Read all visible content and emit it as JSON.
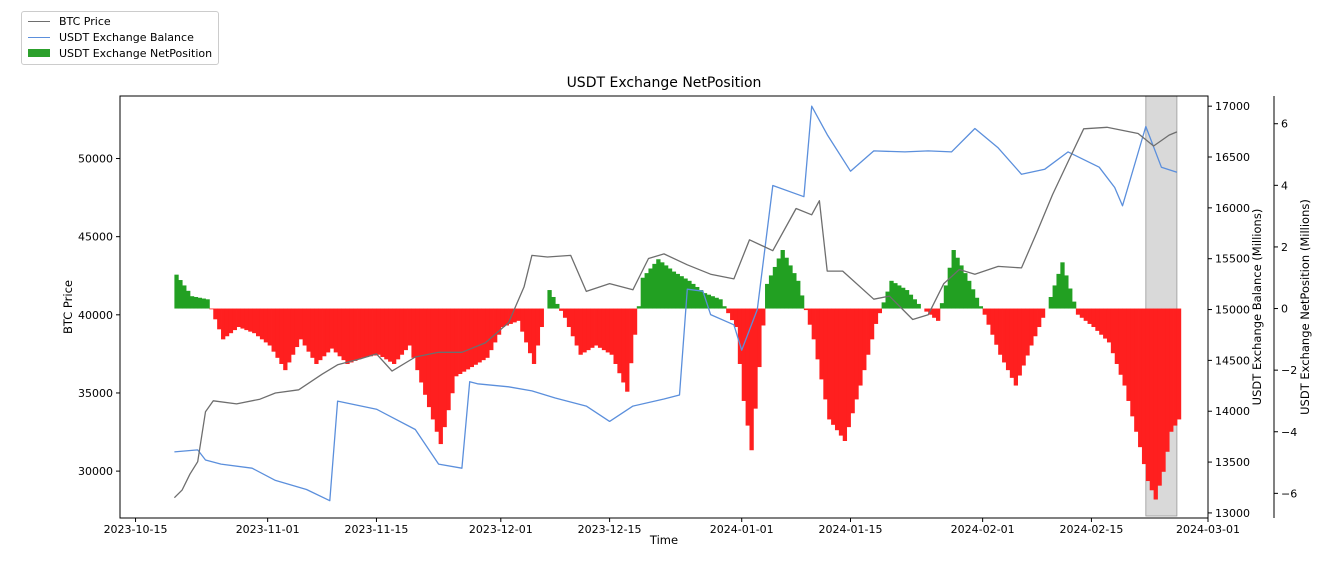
{
  "chart_data": {
    "type": "line",
    "title": "USDT Exchange NetPosition",
    "xlabel": "Time",
    "ylabel_left": "BTC Price",
    "ylabel_right1": "USDT Exchange Balance (Millions)",
    "ylabel_right2": "USDT Exchange NetPosition (Millions)",
    "x_range": [
      "2023-10-13",
      "2024-03-01"
    ],
    "x_ticks": [
      "2023-10-15",
      "2023-11-01",
      "2023-11-15",
      "2023-12-01",
      "2023-12-15",
      "2024-01-01",
      "2024-01-15",
      "2024-02-01",
      "2024-02-15",
      "2024-03-01"
    ],
    "ylim_left": [
      27000,
      54000
    ],
    "yticks_left": [
      30000,
      35000,
      40000,
      45000,
      50000
    ],
    "ylim_right1": [
      12950,
      17100
    ],
    "yticks_right1": [
      13000,
      13500,
      14000,
      14500,
      15000,
      15500,
      16000,
      16500,
      17000
    ],
    "ylim_right2": [
      -6.8,
      6.9
    ],
    "yticks_right2": [
      -6,
      -4,
      -2,
      0,
      2,
      4,
      6
    ],
    "legend": [
      {
        "label": "BTC Price",
        "color": "#6e6e6e",
        "kind": "line"
      },
      {
        "label": "USDT Exchange Balance",
        "color": "#5b8fdc",
        "kind": "line"
      },
      {
        "label": "USDT Exchange NetPosition",
        "color": "#2ca02c",
        "kind": "bar"
      }
    ],
    "highlight_range": [
      "2024-02-22",
      "2024-02-26"
    ],
    "colors": {
      "price": "#6e6e6e",
      "balance": "#5b8fdc",
      "positive": "#22a022",
      "negative": "#ff1f1f",
      "highlight": "#d9d9d9"
    },
    "series": [
      {
        "name": "BTC Price",
        "axis": "left",
        "x": [
          "2023-10-20",
          "2023-10-21",
          "2023-10-22",
          "2023-10-23",
          "2023-10-24",
          "2023-10-25",
          "2023-10-28",
          "2023-10-31",
          "2023-11-02",
          "2023-11-05",
          "2023-11-08",
          "2023-11-10",
          "2023-11-13",
          "2023-11-15",
          "2023-11-17",
          "2023-11-20",
          "2023-11-23",
          "2023-11-26",
          "2023-11-29",
          "2023-12-02",
          "2023-12-04",
          "2023-12-05",
          "2023-12-07",
          "2023-12-10",
          "2023-12-12",
          "2023-12-15",
          "2023-12-18",
          "2023-12-20",
          "2023-12-22",
          "2023-12-25",
          "2023-12-28",
          "2023-12-31",
          "2024-01-02",
          "2024-01-05",
          "2024-01-08",
          "2024-01-10",
          "2024-01-11",
          "2024-01-12",
          "2024-01-14",
          "2024-01-18",
          "2024-01-20",
          "2024-01-23",
          "2024-01-25",
          "2024-01-27",
          "2024-01-29",
          "2024-01-31",
          "2024-02-03",
          "2024-02-06",
          "2024-02-08",
          "2024-02-10",
          "2024-02-12",
          "2024-02-14",
          "2024-02-17",
          "2024-02-19",
          "2024-02-21",
          "2024-02-23",
          "2024-02-25",
          "2024-02-26"
        ],
        "values": [
          28300,
          28800,
          29800,
          30600,
          33800,
          34500,
          34300,
          34600,
          35000,
          35200,
          36200,
          36800,
          37200,
          37500,
          36400,
          37300,
          37600,
          37600,
          38200,
          39500,
          41800,
          43800,
          43700,
          43800,
          41500,
          42000,
          41600,
          43600,
          43900,
          43200,
          42600,
          42300,
          44800,
          44100,
          46800,
          46400,
          47300,
          42800,
          42800,
          41000,
          41200,
          39700,
          40000,
          42000,
          42900,
          42600,
          43100,
          43000,
          45300,
          47700,
          49800,
          51900,
          52000,
          51800,
          51600,
          50800,
          51500,
          51700
        ]
      },
      {
        "name": "USDT Exchange Balance",
        "axis": "right1",
        "x": [
          "2023-10-20",
          "2023-10-23",
          "2023-10-24",
          "2023-10-26",
          "2023-10-30",
          "2023-11-02",
          "2023-11-06",
          "2023-11-09",
          "2023-11-10",
          "2023-11-15",
          "2023-11-20",
          "2023-11-23",
          "2023-11-26",
          "2023-11-27",
          "2023-11-28",
          "2023-12-02",
          "2023-12-05",
          "2023-12-08",
          "2023-12-12",
          "2023-12-15",
          "2023-12-18",
          "2023-12-22",
          "2023-12-24",
          "2023-12-25",
          "2023-12-27",
          "2023-12-28",
          "2023-12-31",
          "2024-01-01",
          "2024-01-02",
          "2024-01-03",
          "2024-01-05",
          "2024-01-09",
          "2024-01-10",
          "2024-01-12",
          "2024-01-15",
          "2024-01-18",
          "2024-01-22",
          "2024-01-25",
          "2024-01-28",
          "2024-01-31",
          "2024-02-03",
          "2024-02-06",
          "2024-02-09",
          "2024-02-12",
          "2024-02-16",
          "2024-02-18",
          "2024-02-19",
          "2024-02-22",
          "2024-02-24",
          "2024-02-26"
        ],
        "values": [
          13600,
          13620,
          13520,
          13480,
          13440,
          13320,
          13230,
          13120,
          14100,
          14020,
          13820,
          13480,
          13440,
          14290,
          14270,
          14240,
          14200,
          14130,
          14050,
          13900,
          14050,
          14120,
          14160,
          15200,
          15180,
          14950,
          14850,
          14600,
          14800,
          15000,
          16220,
          16110,
          17000,
          16720,
          16360,
          16560,
          16550,
          16560,
          16550,
          16780,
          16590,
          16330,
          16380,
          16550,
          16400,
          16200,
          16020,
          16800,
          16400,
          16350
        ]
      },
      {
        "name": "USDT Exchange NetPosition",
        "axis": "right2",
        "kind": "bar",
        "x": [
          "2023-10-20",
          "2023-10-22",
          "2023-10-24",
          "2023-10-26",
          "2023-10-28",
          "2023-10-30",
          "2023-11-01",
          "2023-11-03",
          "2023-11-05",
          "2023-11-07",
          "2023-11-09",
          "2023-11-11",
          "2023-11-13",
          "2023-11-15",
          "2023-11-17",
          "2023-11-19",
          "2023-11-21",
          "2023-11-23",
          "2023-11-25",
          "2023-11-27",
          "2023-11-29",
          "2023-12-01",
          "2023-12-03",
          "2023-12-05",
          "2023-12-07",
          "2023-12-09",
          "2023-12-11",
          "2023-12-13",
          "2023-12-15",
          "2023-12-17",
          "2023-12-19",
          "2023-12-21",
          "2023-12-23",
          "2023-12-25",
          "2023-12-27",
          "2023-12-29",
          "2023-12-31",
          "2024-01-01",
          "2024-01-02",
          "2024-01-04",
          "2024-01-06",
          "2024-01-08",
          "2024-01-10",
          "2024-01-12",
          "2024-01-14",
          "2024-01-16",
          "2024-01-18",
          "2024-01-20",
          "2024-01-22",
          "2024-01-24",
          "2024-01-26",
          "2024-01-28",
          "2024-01-30",
          "2024-02-01",
          "2024-02-03",
          "2024-02-05",
          "2024-02-07",
          "2024-02-09",
          "2024-02-11",
          "2024-02-13",
          "2024-02-15",
          "2024-02-17",
          "2024-02-19",
          "2024-02-21",
          "2024-02-22",
          "2024-02-23",
          "2024-02-24",
          "2024-02-25",
          "2024-02-26"
        ],
        "values": [
          1.1,
          0.4,
          0.3,
          -1.0,
          -0.6,
          -0.8,
          -1.2,
          -2.0,
          -1.0,
          -1.8,
          -1.3,
          -1.8,
          -1.6,
          -1.5,
          -1.8,
          -1.2,
          -2.8,
          -4.4,
          -2.2,
          -1.9,
          -1.6,
          -0.6,
          -0.4,
          -1.8,
          0.6,
          -0.3,
          -1.5,
          -1.2,
          -1.5,
          -2.7,
          1.0,
          1.6,
          1.2,
          0.9,
          0.5,
          0.3,
          -0.6,
          -3.0,
          -4.6,
          0.8,
          1.9,
          0.9,
          -1.0,
          -3.6,
          -4.3,
          -2.5,
          -0.5,
          0.9,
          0.6,
          0.0,
          -0.4,
          1.9,
          0.9,
          -0.2,
          -1.5,
          -2.5,
          -1.2,
          0.0,
          1.5,
          -0.2,
          -0.6,
          -1.1,
          -2.5,
          -4.5,
          -5.6,
          -6.2,
          -5.3,
          -4.0,
          -3.6
        ]
      }
    ]
  }
}
